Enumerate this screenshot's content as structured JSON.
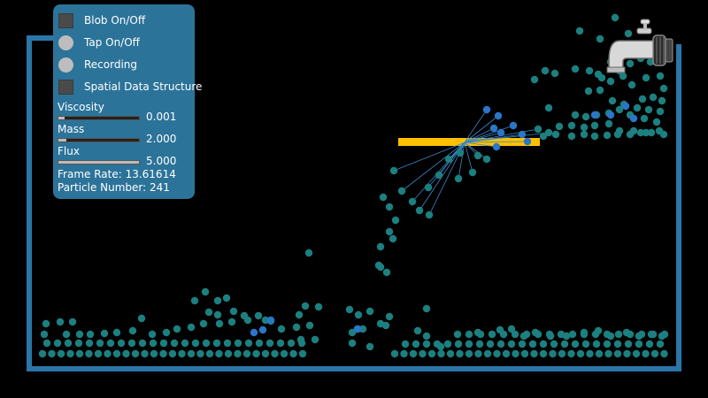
{
  "controls": {
    "toggles": [
      {
        "label": "Blob On/Off",
        "shape": "square"
      },
      {
        "label": "Tap On/Off",
        "shape": "circle"
      },
      {
        "label": "Recording",
        "shape": "circle"
      },
      {
        "label": "Spatial Data Structure",
        "shape": "square"
      }
    ],
    "sliders": [
      {
        "label": "Viscosity",
        "value": "0.001",
        "level": 0.0
      },
      {
        "label": "Mass",
        "value": "2.000",
        "level": 0.1
      },
      {
        "label": "Flux",
        "value": "5.000",
        "level": 1.0
      }
    ],
    "frame_rate_text": "Frame Rate: 13.61614",
    "particle_number_text": "Particle Number: 241"
  },
  "colors": {
    "container": "#2a76a8",
    "particle": "#1c8080",
    "particle_highlight": "#2a76c8",
    "obstacle": "#ffc000",
    "panel": "#2c7399",
    "neighbor_lines": "#3a86c8"
  },
  "icons": {
    "faucet": "faucet-icon"
  }
}
